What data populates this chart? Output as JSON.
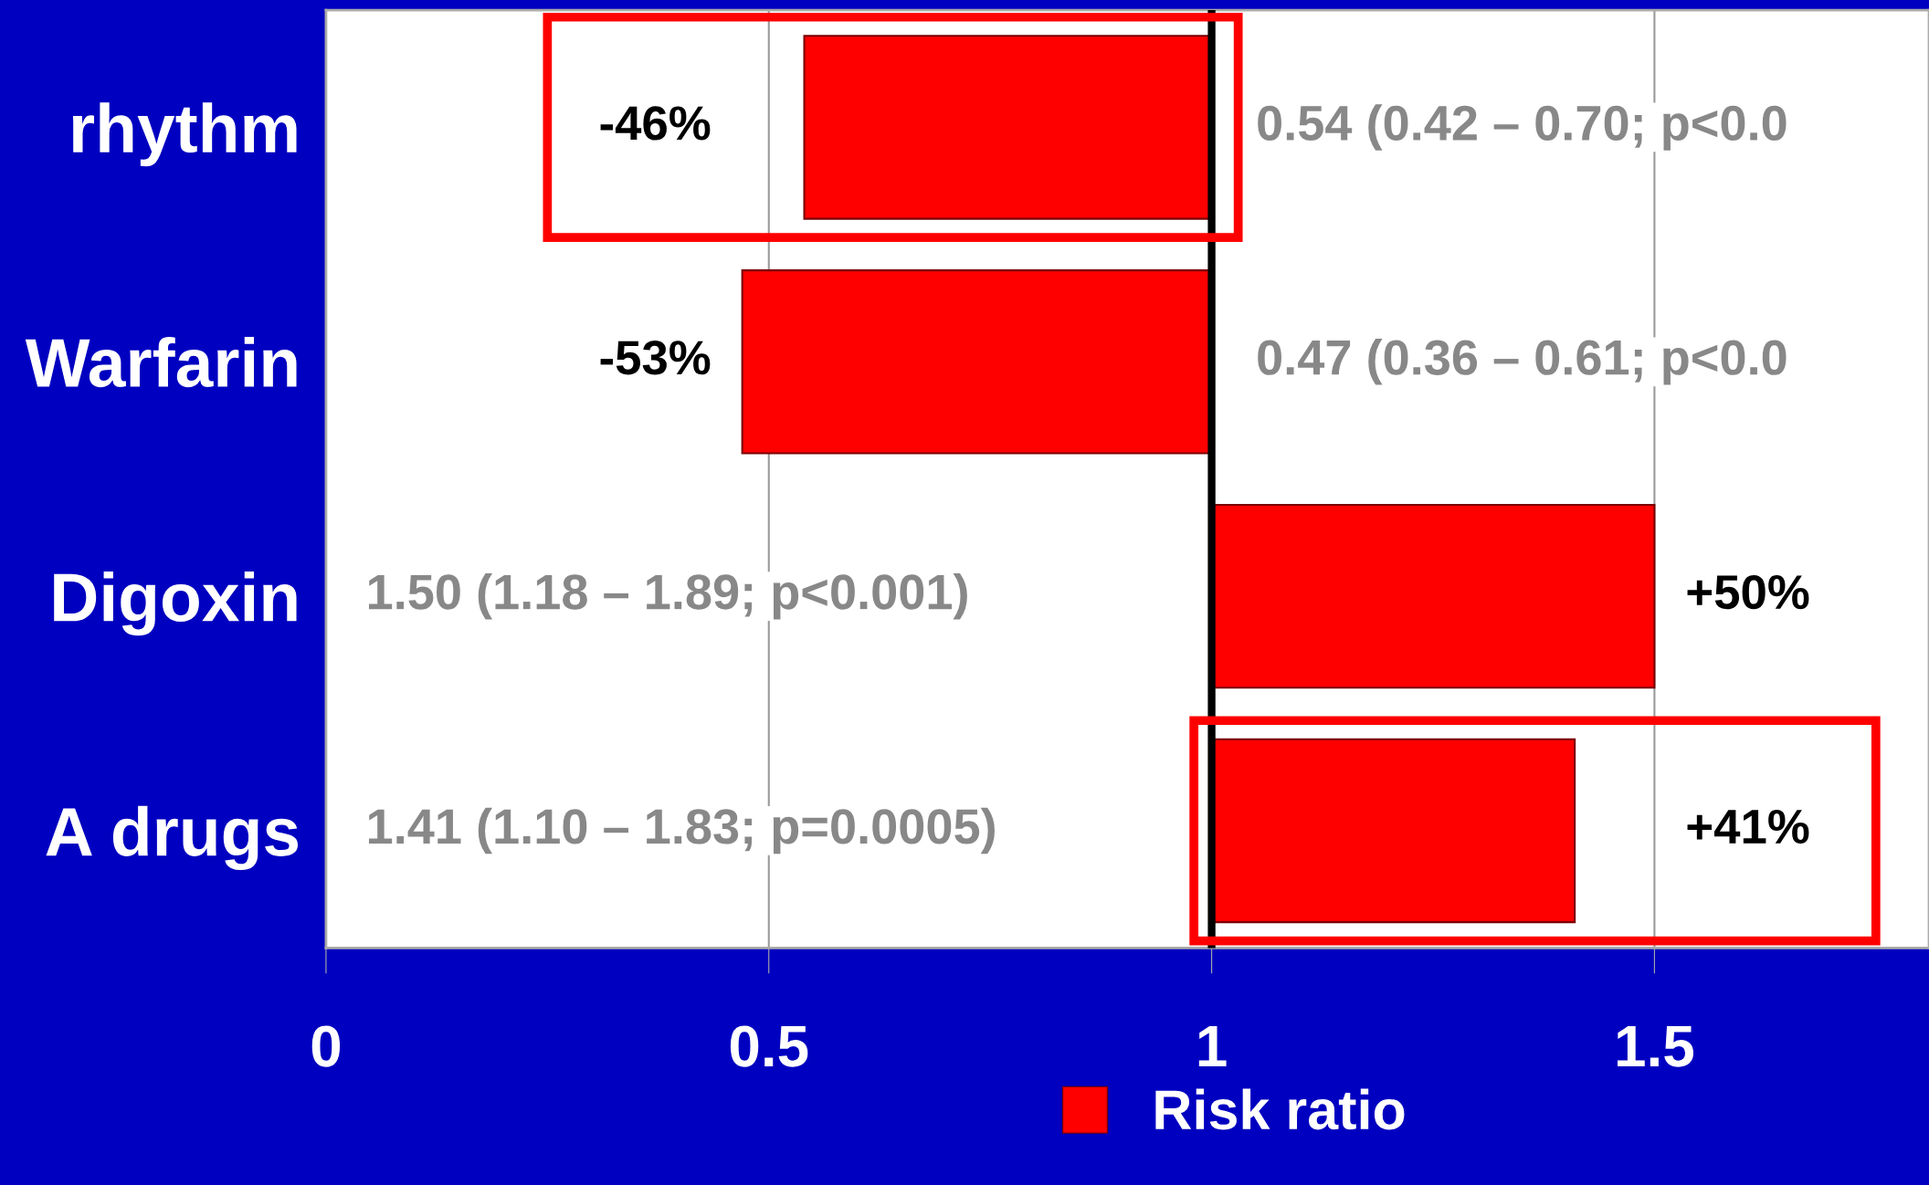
{
  "chart_data": {
    "type": "bar",
    "orientation": "horizontal",
    "categories": [
      "rhythm",
      "Warfarin",
      "Digoxin",
      "A drugs"
    ],
    "series": [
      {
        "name": "Risk ratio",
        "color": "#ff0000",
        "values": [
          -0.46,
          -0.53,
          0.5,
          0.41
        ],
        "base": [
          1,
          1,
          1,
          1
        ],
        "value_labels": [
          "-46%",
          "-53%",
          "+50%",
          "+41%"
        ]
      }
    ],
    "xlim": [
      0,
      1.81
    ],
    "xticks": [
      0,
      0.5,
      1,
      1.5
    ],
    "grid": "x",
    "legend": "bottom",
    "ref_lines": [
      {
        "axis": "x",
        "value": 1,
        "color": "#000000"
      }
    ],
    "annotations": [
      "0.54 (0.42 – 0.70; p<0.0",
      "0.47 (0.36 – 0.61; p<0.0",
      "1.50 (1.18 – 1.89; p<0.001)",
      "1.41 (1.10 – 1.83; p=0.0005)"
    ]
  }
}
